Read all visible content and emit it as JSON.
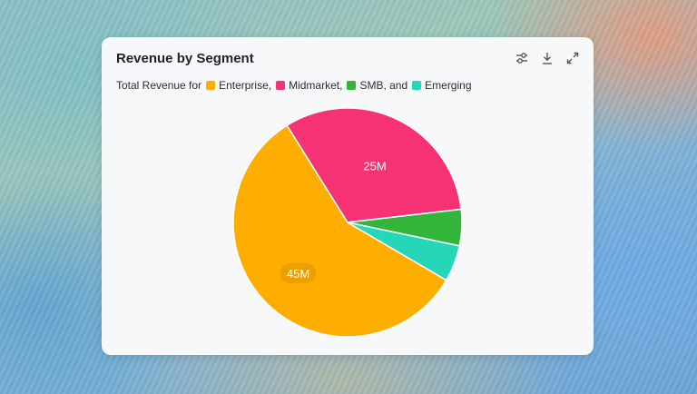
{
  "colors": {
    "enterprise": "#FFAE00",
    "midmarket": "#F53274",
    "smb": "#33B53A",
    "emerging": "#26D6B8"
  },
  "header": {
    "title": "Revenue by Segment",
    "icons": [
      "sliders-icon",
      "download-icon",
      "expand-icon"
    ]
  },
  "subtitle": {
    "prefix": "Total Revenue for",
    "items": [
      "Enterprise,",
      "Midmarket,",
      "SMB, and",
      "Emerging"
    ]
  },
  "chart_data": {
    "type": "pie",
    "categories": [
      "Enterprise",
      "Midmarket",
      "SMB",
      "Emerging"
    ],
    "values": [
      45,
      25,
      4,
      4
    ],
    "data_labels": [
      "45M",
      "25M",
      "",
      ""
    ],
    "title": "Revenue by Segment",
    "subtitle": "Total Revenue for Enterprise, Midmarket, SMB, and Emerging"
  }
}
